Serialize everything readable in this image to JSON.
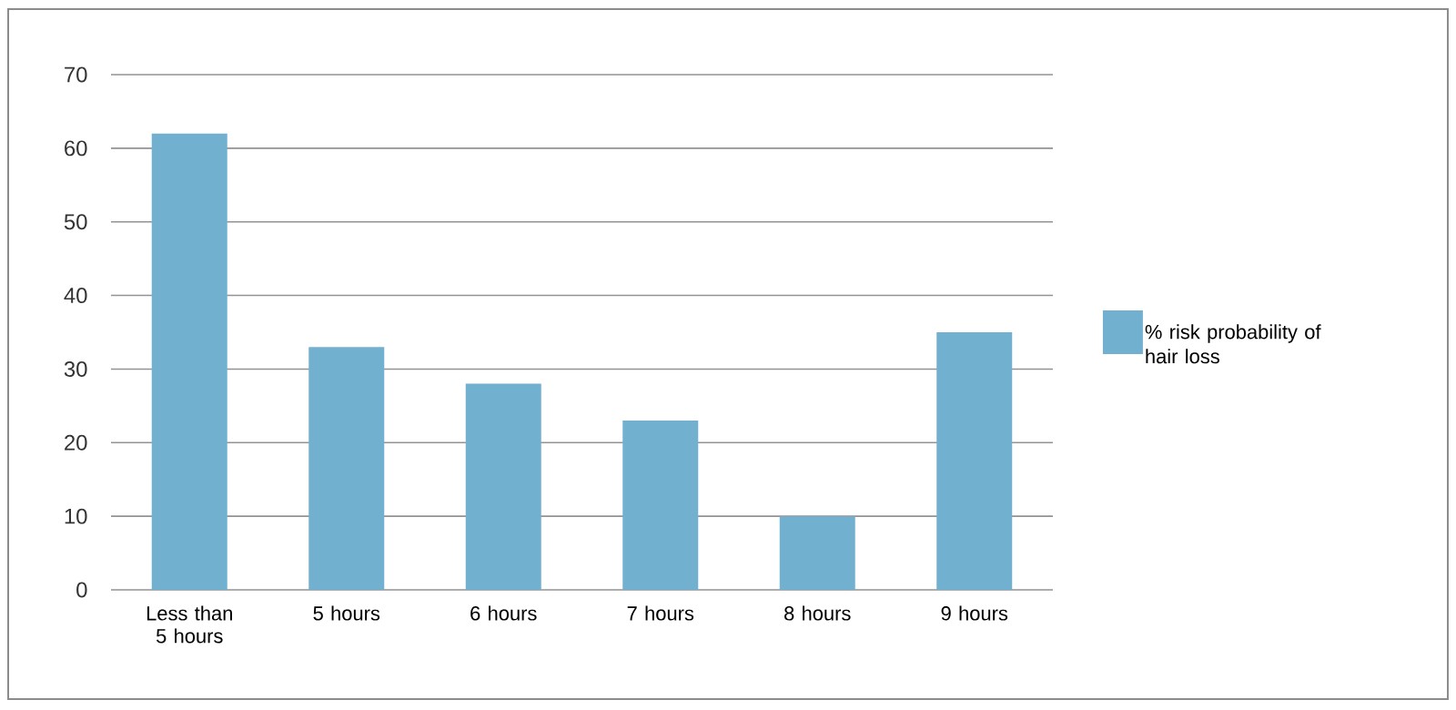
{
  "chart_data": {
    "type": "bar",
    "categories": [
      "Less than 5 hours",
      "5 hours",
      "6 hours",
      "7 hours",
      "8 hours",
      "9 hours"
    ],
    "series": [
      {
        "name": "% risk probability of hair loss",
        "color": "#72b0d0",
        "values": [
          62,
          33,
          28,
          23,
          10,
          35
        ]
      }
    ],
    "ylim": [
      0,
      70
    ],
    "yticks": [
      0,
      10,
      20,
      30,
      40,
      50,
      60,
      70
    ],
    "grid": "y",
    "legend": "right"
  }
}
